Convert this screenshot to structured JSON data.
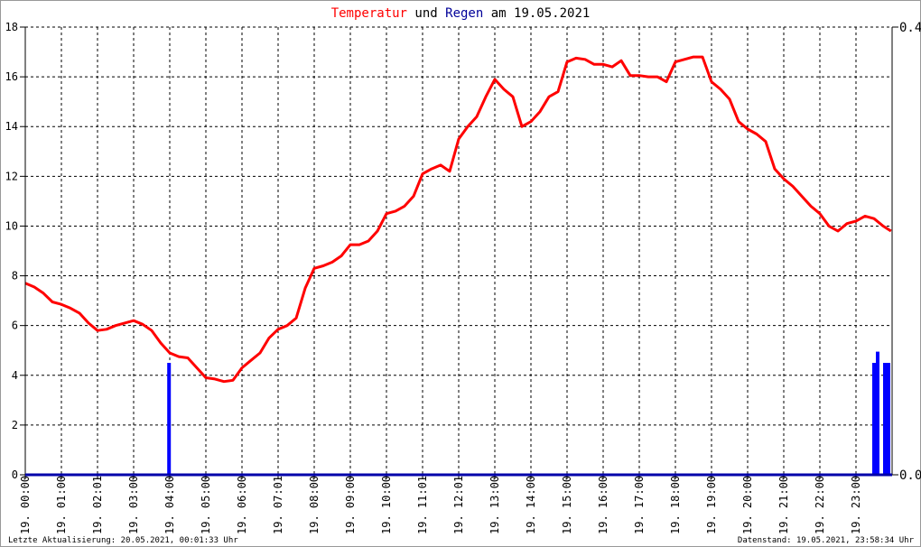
{
  "chart_data": {
    "type": "line",
    "title": {
      "part1": "Temperatur",
      "part2": " und ",
      "part3": "Regen",
      "part4": " am 19.05.2021"
    },
    "colors": {
      "temperature": "#ff0000",
      "rain": "#0000ff",
      "title_regen": "#000099"
    },
    "x_tick_labels": [
      "19. 00:00",
      "19. 01:00",
      "19. 02:01",
      "19. 03:00",
      "19. 04:00",
      "19. 05:00",
      "19. 06:00",
      "19. 07:01",
      "19. 08:00",
      "19. 09:00",
      "19. 10:00",
      "19. 11:01",
      "19. 12:01",
      "19. 13:00",
      "19. 14:00",
      "19. 15:00",
      "19. 16:00",
      "19. 17:00",
      "19. 18:00",
      "19. 19:00",
      "19. 20:00",
      "19. 21:00",
      "19. 22:00",
      "19. 23:00"
    ],
    "xlim_hours": [
      0,
      24
    ],
    "y_left": {
      "ylim": [
        0,
        18
      ],
      "ticks": [
        "0",
        "2",
        "4",
        "6",
        "8",
        "10",
        "12",
        "14",
        "16",
        "18"
      ]
    },
    "y_right": {
      "ylim": [
        0,
        0.4
      ],
      "ticks": [
        "0.0",
        "0.4"
      ]
    },
    "grid": true,
    "series": [
      {
        "key": "temperature",
        "type": "line",
        "x_hours": [
          0,
          0.25,
          0.5,
          0.75,
          1,
          1.25,
          1.5,
          1.75,
          2,
          2.25,
          2.5,
          2.75,
          3,
          3.25,
          3.5,
          3.75,
          4,
          4.25,
          4.5,
          4.75,
          5,
          5.25,
          5.5,
          5.75,
          6,
          6.25,
          6.5,
          6.75,
          7,
          7.25,
          7.5,
          7.75,
          8,
          8.25,
          8.5,
          8.75,
          9,
          9.25,
          9.5,
          9.75,
          10,
          10.25,
          10.5,
          10.75,
          11,
          11.25,
          11.5,
          11.75,
          12,
          12.25,
          12.5,
          12.75,
          13,
          13.25,
          13.5,
          13.75,
          14,
          14.25,
          14.5,
          14.75,
          15,
          15.25,
          15.5,
          15.75,
          16,
          16.25,
          16.5,
          16.75,
          17,
          17.25,
          17.5,
          17.75,
          18,
          18.25,
          18.5,
          18.75,
          19,
          19.25,
          19.5,
          19.75,
          20,
          20.25,
          20.5,
          20.75,
          21,
          21.25,
          21.5,
          21.75,
          22,
          22.25,
          22.5,
          22.75,
          23,
          23.25,
          23.5,
          23.75,
          23.97
        ],
        "values": [
          7.7,
          7.55,
          7.3,
          6.95,
          6.85,
          6.7,
          6.5,
          6.1,
          5.8,
          5.85,
          6.0,
          6.1,
          6.2,
          6.05,
          5.8,
          5.3,
          4.9,
          4.75,
          4.7,
          4.3,
          3.9,
          3.85,
          3.75,
          3.8,
          4.3,
          4.6,
          4.9,
          5.5,
          5.85,
          6.0,
          6.3,
          7.5,
          8.3,
          8.4,
          8.55,
          8.8,
          9.25,
          9.25,
          9.4,
          9.8,
          10.5,
          10.6,
          10.8,
          11.2,
          12.1,
          12.3,
          12.45,
          12.2,
          13.5,
          14.0,
          14.4,
          15.2,
          15.9,
          15.5,
          15.2,
          14.0,
          14.2,
          14.6,
          15.2,
          15.4,
          16.6,
          16.75,
          16.7,
          16.5,
          16.5,
          16.4,
          16.65,
          16.05,
          16.05,
          16.0,
          16.0,
          15.8,
          16.6,
          16.7,
          16.8,
          16.8,
          15.8,
          15.5,
          15.1,
          14.2,
          13.9,
          13.7,
          13.4,
          12.3,
          11.9,
          11.6,
          11.2,
          10.8,
          10.5,
          10.0,
          9.8,
          10.1,
          10.2,
          10.4,
          10.3,
          10.0,
          9.8
        ]
      },
      {
        "key": "rain",
        "type": "bar",
        "axis": "right",
        "x_hours": [
          3.98,
          23.5,
          23.6,
          23.8,
          23.9
        ],
        "values": [
          0.1,
          0.1,
          0.11,
          0.1,
          0.1
        ]
      }
    ]
  },
  "footer": {
    "left": "Letzte Aktualisierung: 20.05.2021, 00:01:33 Uhr",
    "right": "Datenstand: 19.05.2021, 23:58:34 Uhr"
  }
}
